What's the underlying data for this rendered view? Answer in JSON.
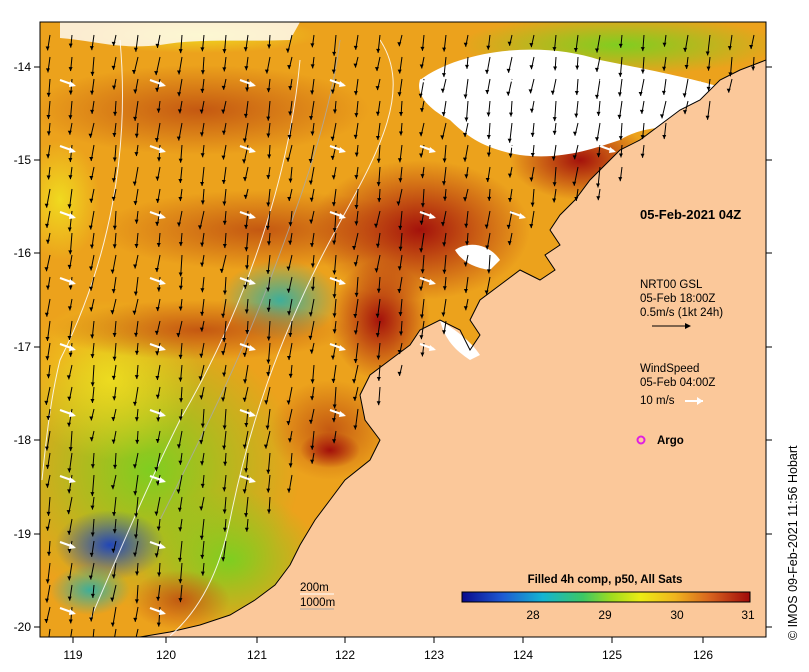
{
  "map": {
    "lon_ticks": [
      "119",
      "120",
      "121",
      "122",
      "123",
      "124",
      "125",
      "126"
    ],
    "lat_ticks": [
      "-14",
      "-15",
      "-16",
      "-17",
      "-18",
      "-19",
      "-20"
    ],
    "timestamp": "05-Feb-2021 04Z",
    "current_legend": {
      "line1": "NRT00 GSL",
      "line2": "05-Feb 18:00Z",
      "line3": "0.5m/s (1kt 24h)"
    },
    "wind_legend": {
      "line1": "WindSpeed",
      "line2": "05-Feb 04:00Z",
      "line3": "10 m/s"
    },
    "argo_label": "Argo",
    "isobath_labels": [
      "200m",
      "1000m"
    ],
    "colorbar": {
      "title": "Filled 4h comp, p50, All Sats",
      "ticks": [
        "28",
        "29",
        "30",
        "31"
      ]
    },
    "credit": "© IMOS 09-Feb-2021 11:56 Hobart",
    "colors": {
      "land": "#fbc89a",
      "argo": "#e020e0"
    },
    "icons": {
      "current_arrow": "arrow-right-black",
      "wind_arrow": "arrow-right-white",
      "argo": "argo-float-marker"
    }
  }
}
